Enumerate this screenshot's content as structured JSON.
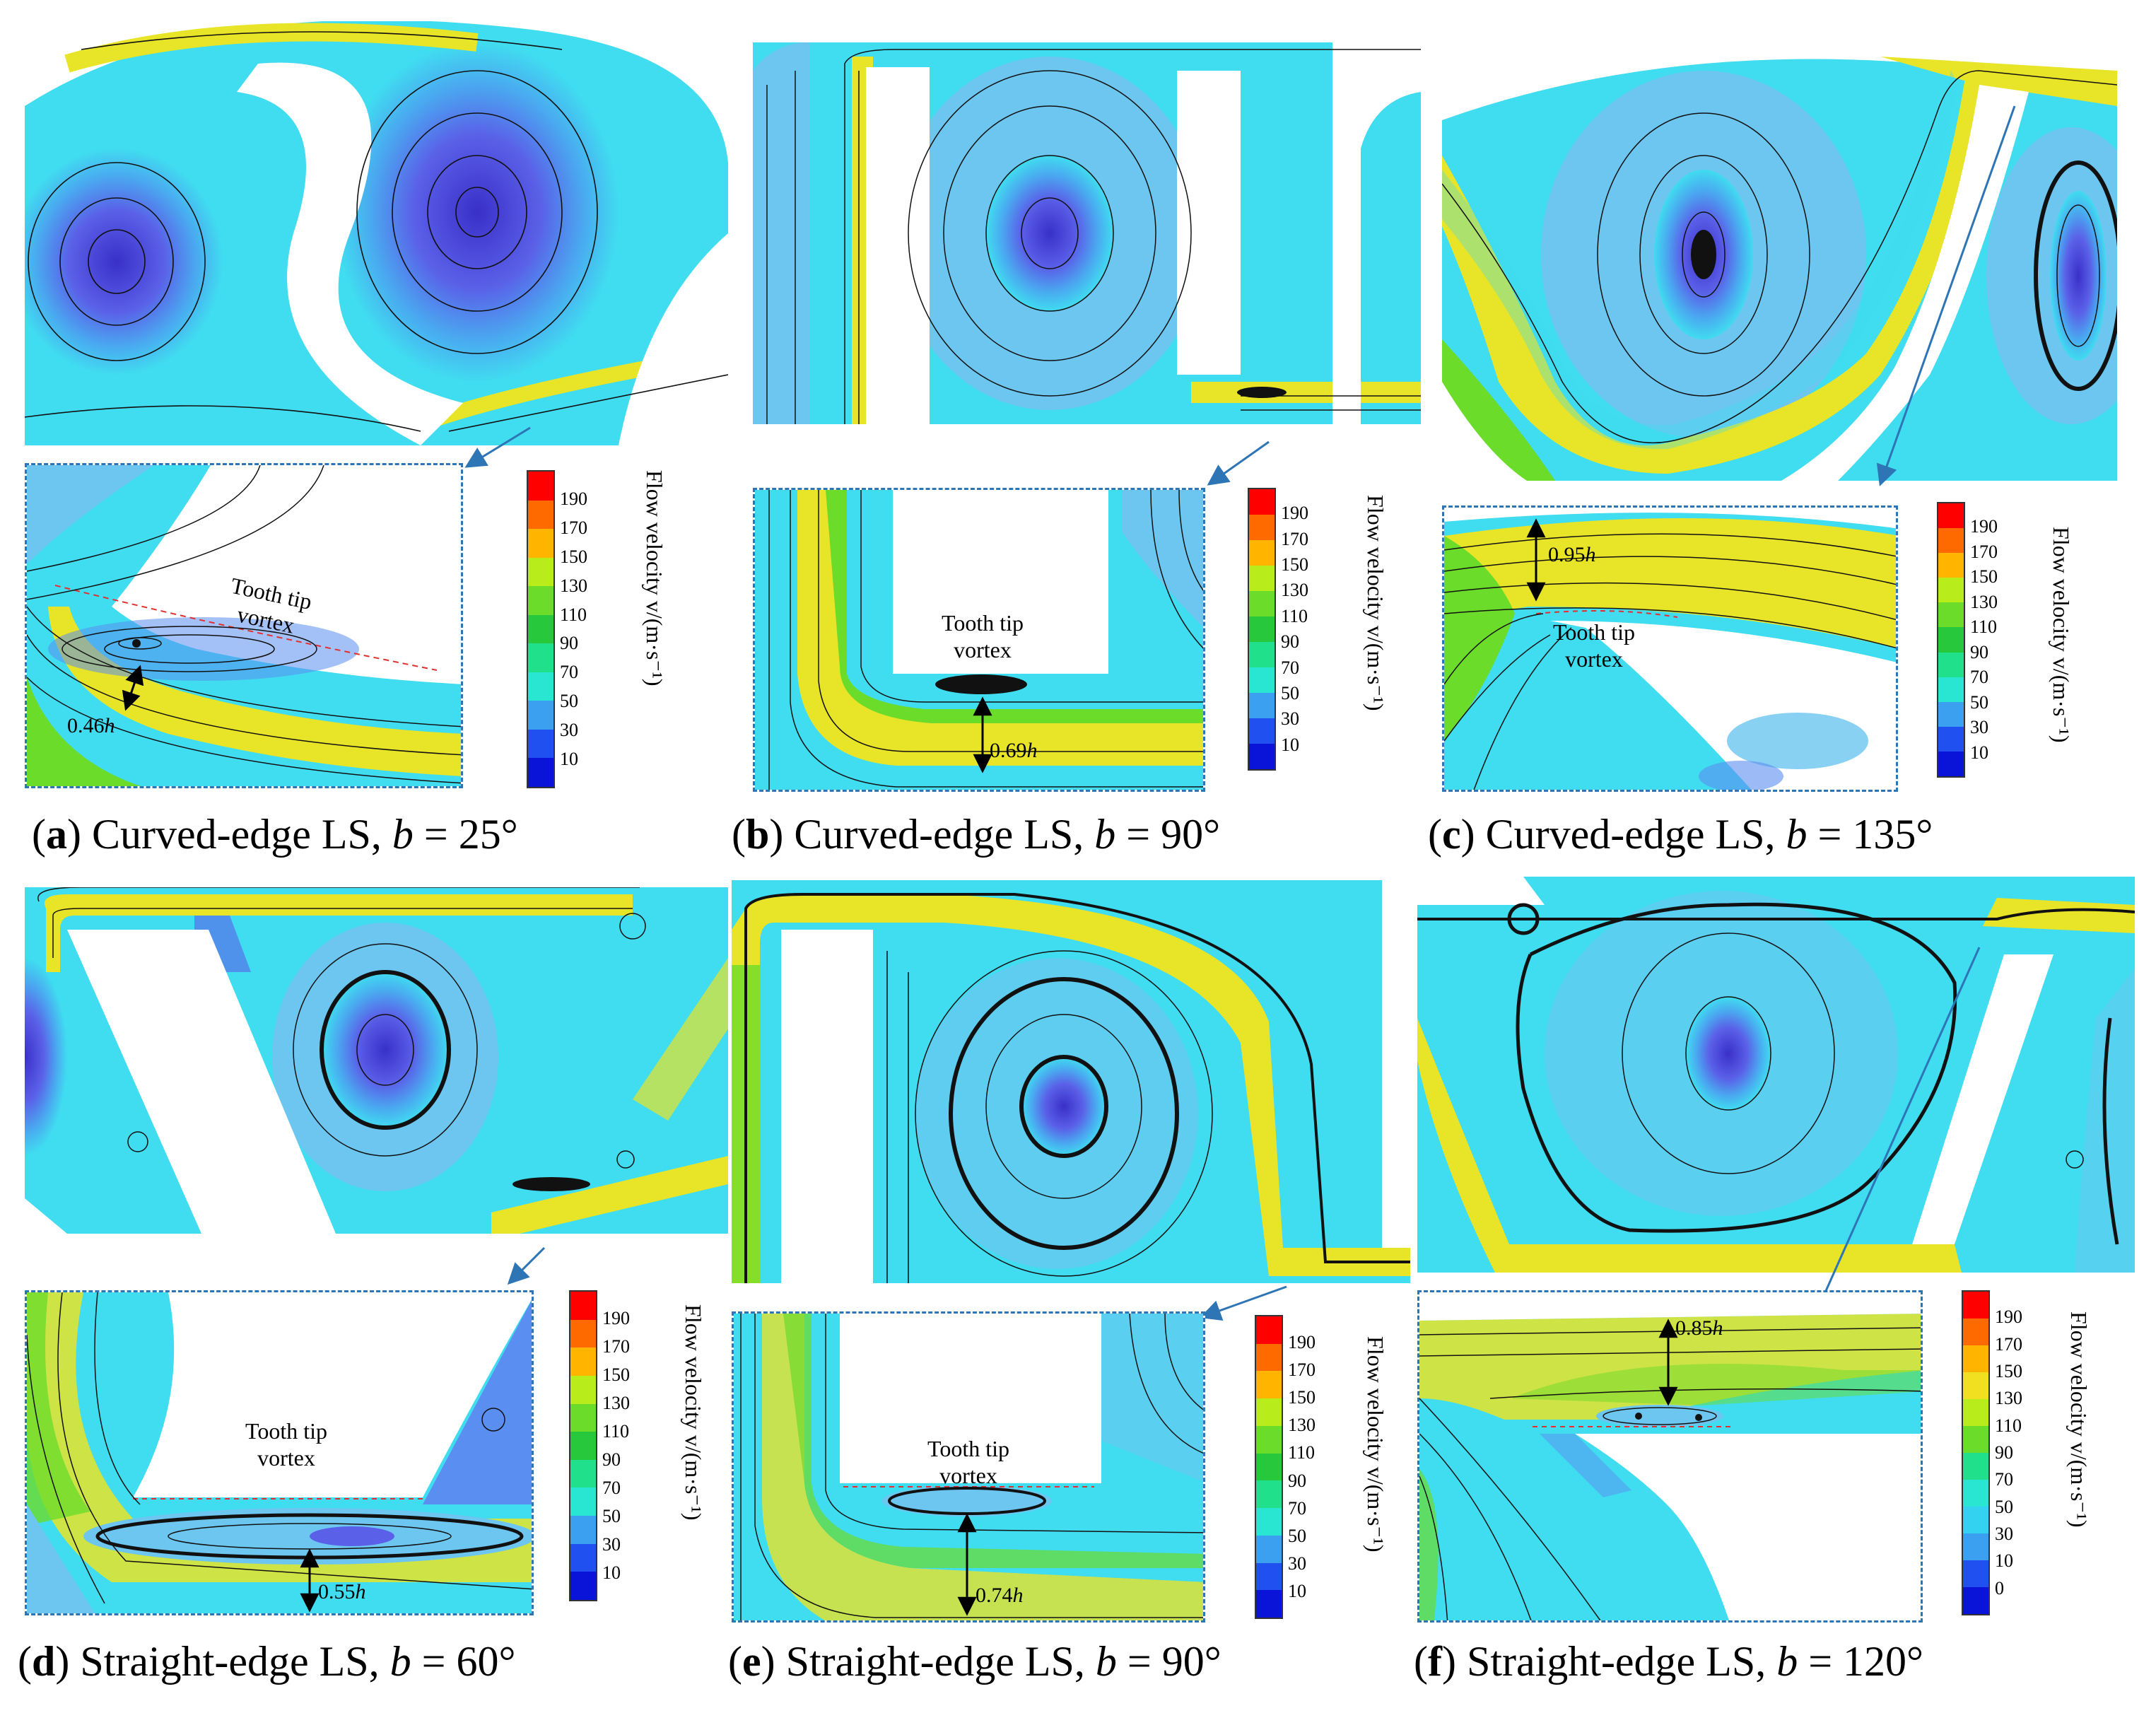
{
  "colorbar": {
    "title": "Flow velocity v/(m·s⁻¹)",
    "colors": [
      "#ff0000",
      "#ff6a00",
      "#ffb400",
      "#f0e020",
      "#b8ec1a",
      "#6cdc2a",
      "#28c83c",
      "#20e08c",
      "#28e6d2",
      "#32d2f0",
      "#3ca0f0",
      "#2050f0",
      "#0a14d8"
    ]
  },
  "panels": [
    {
      "id": "a",
      "caption_letter": "a",
      "caption_text": "Curved-edge LS,",
      "caption_var": "b",
      "caption_value": "= 25°",
      "vortex_label_1": "Tooth tip",
      "vortex_label_2": "vortex",
      "measure_value": "0.46",
      "measure_unit": "h",
      "ticks": [
        "190",
        "170",
        "150",
        "130",
        "110",
        "90",
        "70",
        "50",
        "30",
        "10"
      ]
    },
    {
      "id": "b",
      "caption_letter": "b",
      "caption_text": "Curved-edge LS,",
      "caption_var": "b",
      "caption_value": "= 90°",
      "vortex_label_1": "Tooth tip",
      "vortex_label_2": "vortex",
      "measure_value": "0.69",
      "measure_unit": "h",
      "ticks": [
        "190",
        "170",
        "150",
        "130",
        "110",
        "90",
        "70",
        "50",
        "30",
        "10"
      ]
    },
    {
      "id": "c",
      "caption_letter": "c",
      "caption_text": "Curved-edge LS,",
      "caption_var": "b",
      "caption_value": "= 135°",
      "vortex_label_1": "Tooth tip",
      "vortex_label_2": "vortex",
      "measure_value": "0.95",
      "measure_unit": "h",
      "ticks": [
        "190",
        "170",
        "150",
        "130",
        "110",
        "90",
        "70",
        "50",
        "30",
        "10"
      ]
    },
    {
      "id": "d",
      "caption_letter": "d",
      "caption_text": "Straight-edge LS,",
      "caption_var": "b",
      "caption_value": "= 60°",
      "vortex_label_1": "Tooth tip",
      "vortex_label_2": "vortex",
      "measure_value": "0.55",
      "measure_unit": "h",
      "ticks": [
        "190",
        "170",
        "150",
        "130",
        "110",
        "90",
        "70",
        "50",
        "30",
        "10"
      ]
    },
    {
      "id": "e",
      "caption_letter": "e",
      "caption_text": "Straight-edge LS,",
      "caption_var": "b",
      "caption_value": "= 90°",
      "vortex_label_1": "Tooth tip",
      "vortex_label_2": "vortex",
      "measure_value": "0.74",
      "measure_unit": "h",
      "ticks": [
        "190",
        "170",
        "150",
        "130",
        "110",
        "90",
        "70",
        "50",
        "30",
        "10"
      ]
    },
    {
      "id": "f",
      "caption_letter": "f",
      "caption_text": "Straight-edge LS,",
      "caption_var": "b",
      "caption_value": "= 120°",
      "vortex_label_1": "",
      "vortex_label_2": "",
      "measure_value": "0.85",
      "measure_unit": "h",
      "ticks": [
        "190",
        "170",
        "150",
        "130",
        "110",
        "90",
        "70",
        "50",
        "30",
        "10",
        "0"
      ]
    }
  ]
}
